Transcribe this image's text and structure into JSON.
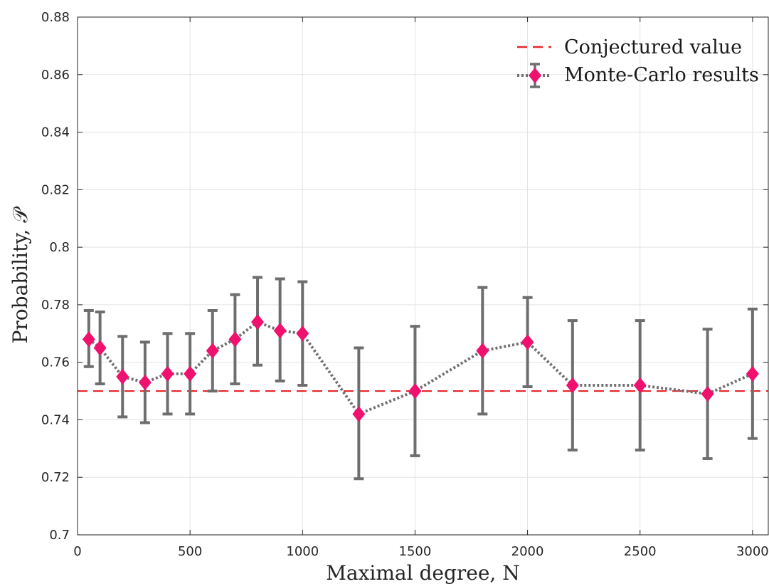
{
  "chart_data": {
    "type": "line",
    "title": "",
    "xlabel": "Maximal degree, N",
    "ylabel": "Probability, 𝒫",
    "xlim": [
      0,
      3070
    ],
    "ylim": [
      0.7,
      0.88
    ],
    "xticks": [
      0,
      500,
      1000,
      1500,
      2000,
      2500,
      3000
    ],
    "yticks": [
      0.7,
      0.72,
      0.74,
      0.76,
      0.78,
      0.8,
      0.82,
      0.84,
      0.86,
      0.88
    ],
    "xtick_labels": [
      "0",
      "500",
      "1000",
      "1500",
      "2000",
      "2500",
      "3000"
    ],
    "ytick_labels": [
      "0.7",
      "0.72",
      "0.74",
      "0.76",
      "0.78",
      "0.8",
      "0.82",
      "0.84",
      "0.86",
      "0.88"
    ],
    "grid": true,
    "legend_position": "top-right",
    "reference_line": {
      "name": "Conjectured value",
      "y": 0.75,
      "color": "#e8262b",
      "style": "dashed"
    },
    "series": [
      {
        "name": "Monte-Carlo results",
        "marker": "diamond",
        "marker_color": "#f0106e",
        "line_color": "#707070",
        "errorbar_color": "#6e6e6e",
        "x": [
          50,
          100,
          200,
          300,
          400,
          500,
          600,
          700,
          800,
          900,
          1000,
          1250,
          1500,
          1800,
          2000,
          2200,
          2500,
          2800,
          3000
        ],
        "y": [
          0.768,
          0.765,
          0.755,
          0.753,
          0.756,
          0.756,
          0.764,
          0.768,
          0.774,
          0.771,
          0.77,
          0.742,
          0.75,
          0.764,
          0.767,
          0.752,
          0.752,
          0.749,
          0.756
        ],
        "y_low": [
          0.7585,
          0.7525,
          0.741,
          0.739,
          0.742,
          0.742,
          0.75,
          0.7525,
          0.759,
          0.7535,
          0.752,
          0.7195,
          0.7275,
          0.742,
          0.7515,
          0.7295,
          0.7295,
          0.7265,
          0.7335
        ],
        "y_high": [
          0.778,
          0.7775,
          0.769,
          0.767,
          0.77,
          0.77,
          0.778,
          0.7835,
          0.7895,
          0.789,
          0.788,
          0.765,
          0.7725,
          0.786,
          0.7825,
          0.7745,
          0.7745,
          0.7715,
          0.7785
        ]
      }
    ]
  }
}
